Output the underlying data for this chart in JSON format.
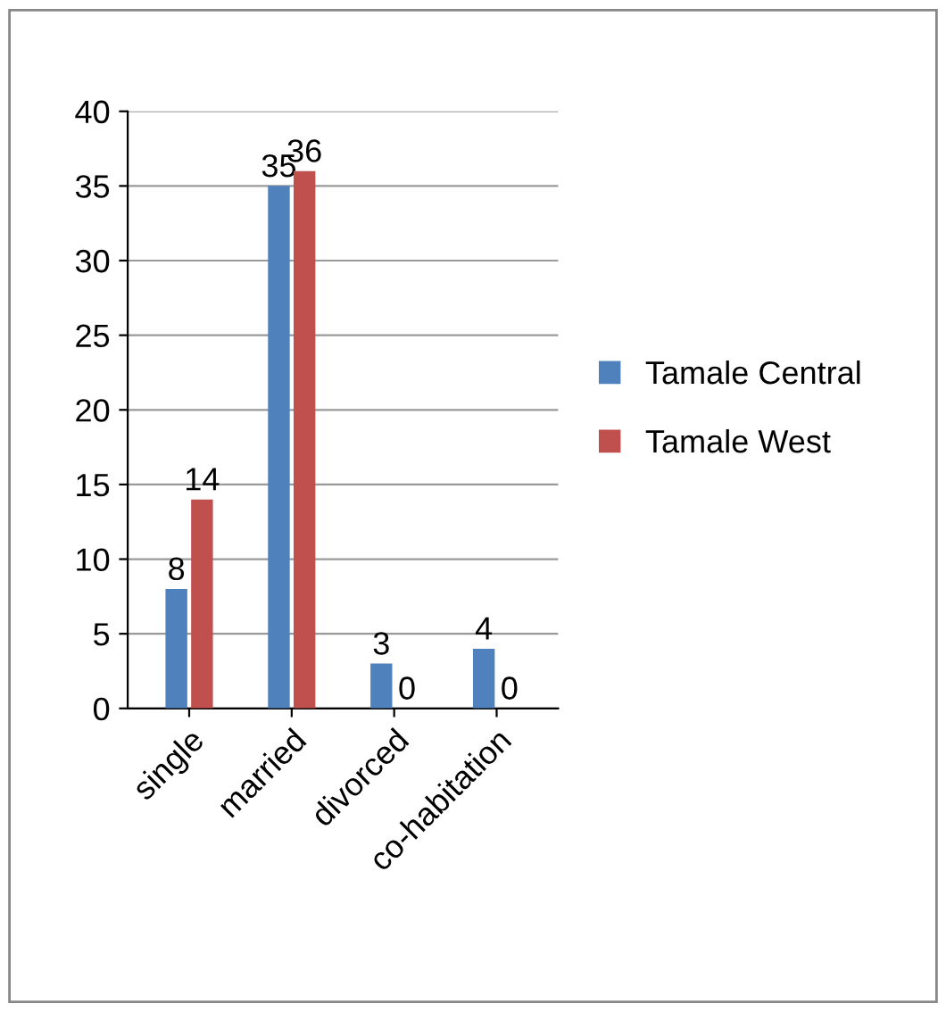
{
  "chart_data": {
    "type": "bar",
    "categories": [
      "single",
      "married",
      "divorced",
      "co-habitation"
    ],
    "series": [
      {
        "name": "Tamale Central",
        "color": "#4f81bd",
        "values": [
          8,
          35,
          3,
          4
        ]
      },
      {
        "name": "Tamale West",
        "color": "#c0504d",
        "values": [
          14,
          36,
          0,
          0
        ]
      }
    ],
    "ylim": [
      0,
      40
    ],
    "yticks": [
      0,
      5,
      10,
      15,
      20,
      25,
      30,
      35,
      40
    ],
    "grid": "y",
    "legend": "right",
    "data_labels": true
  }
}
